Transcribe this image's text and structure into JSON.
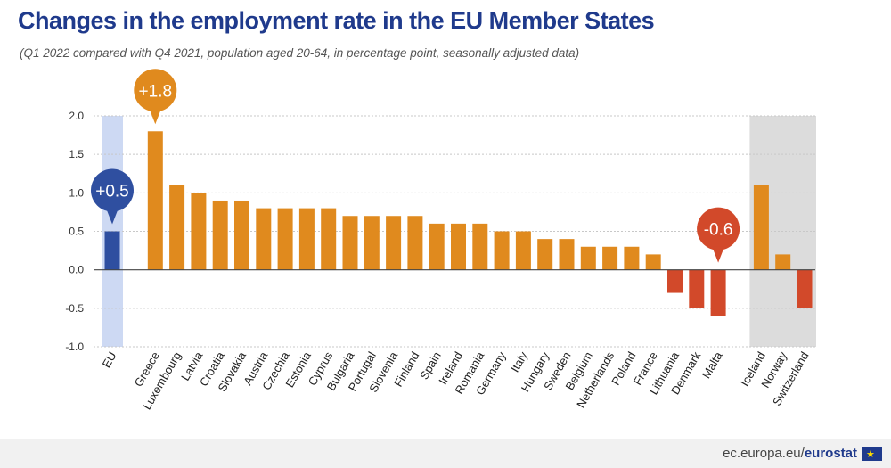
{
  "header": {
    "title": "Changes in the employment rate in the EU Member States",
    "subtitle": "(Q1 2022 compared with Q4 2021, population aged 20-64, in percentage point, seasonally adjusted data)"
  },
  "footer": {
    "url_prefix": "ec.europa.eu/",
    "url_brand": "eurostat"
  },
  "colors": {
    "eu_bar": "#2f4fa0",
    "positive_bar": "#e08a1e",
    "negative_bar": "#d2492a",
    "eu_band": "#cdd9f3",
    "non_eu_band": "#dcdcdc",
    "title": "#1f3a8c"
  },
  "chart_data": {
    "type": "bar",
    "title": "Changes in the employment rate in the EU Member States",
    "categories": [
      "EU",
      "Greece",
      "Luxembourg",
      "Latvia",
      "Croatia",
      "Slovakia",
      "Austria",
      "Czechia",
      "Estonia",
      "Cyprus",
      "Bulgaria",
      "Portugal",
      "Slovenia",
      "Finland",
      "Spain",
      "Ireland",
      "Romania",
      "Germany",
      "Italy",
      "Hungary",
      "Sweden",
      "Belgium",
      "Netherlands",
      "Poland",
      "France",
      "Lithuania",
      "Denmark",
      "Malta",
      "Iceland",
      "Norway",
      "Switzerland"
    ],
    "values": [
      0.5,
      1.8,
      1.1,
      1.0,
      0.9,
      0.9,
      0.8,
      0.8,
      0.8,
      0.8,
      0.7,
      0.7,
      0.7,
      0.7,
      0.6,
      0.6,
      0.6,
      0.5,
      0.5,
      0.4,
      0.4,
      0.3,
      0.3,
      0.3,
      0.2,
      -0.3,
      -0.5,
      -0.6,
      1.1,
      0.2,
      -0.5
    ],
    "groups": [
      "EU",
      "member",
      "member",
      "member",
      "member",
      "member",
      "member",
      "member",
      "member",
      "member",
      "member",
      "member",
      "member",
      "member",
      "member",
      "member",
      "member",
      "member",
      "member",
      "member",
      "member",
      "member",
      "member",
      "member",
      "member",
      "member",
      "member",
      "member",
      "non-EU",
      "non-EU",
      "non-EU"
    ],
    "ylim": [
      -1.0,
      2.0
    ],
    "yticks": [
      "2.0",
      "1.5",
      "1.0",
      "0.5",
      "0.0",
      "-0.5",
      "-1.0"
    ],
    "grid": true,
    "callouts": [
      {
        "category": "EU",
        "label": "+0.5"
      },
      {
        "category": "Greece",
        "label": "+1.8"
      },
      {
        "category": "Malta",
        "label": "-0.6"
      }
    ]
  }
}
